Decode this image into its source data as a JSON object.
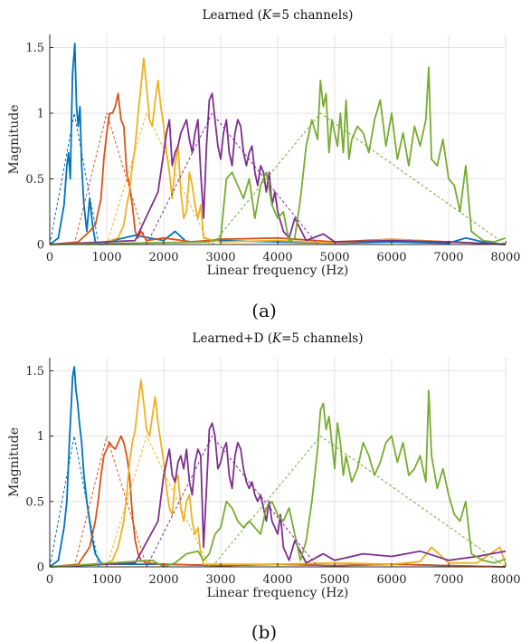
{
  "figure": {
    "captions": [
      "(a)",
      "(b)"
    ]
  },
  "colors": [
    "#0072BD",
    "#D95319",
    "#EDB120",
    "#7E2F8E",
    "#77AC30"
  ],
  "chart_data": [
    {
      "type": "line",
      "title": "Learned (K=5 channels)",
      "title_parts": [
        "Learned (",
        "K",
        "=5 channels)"
      ],
      "xlabel": "Linear frequency (Hz)",
      "ylabel": "Magnitude",
      "xlim": [
        0,
        8000
      ],
      "ylim": [
        0,
        1.6
      ],
      "xticks": [
        0,
        1000,
        2000,
        3000,
        4000,
        5000,
        6000,
        7000,
        8000
      ],
      "yticks": [
        0,
        0.5,
        1,
        1.5
      ],
      "ytick_labels": [
        "0",
        "0.5",
        "1",
        "1.5"
      ],
      "grid": true,
      "series": [
        {
          "style": "solid",
          "x": [
            0,
            150,
            250,
            300,
            330,
            360,
            400,
            440,
            470,
            500,
            530,
            560,
            600,
            650,
            700,
            750,
            800,
            900,
            1100,
            1500,
            2000,
            2200,
            2400,
            3000,
            4000,
            5000,
            6000,
            7000,
            7300,
            7600,
            8000
          ],
          "y": [
            0,
            0.05,
            0.3,
            0.6,
            0.7,
            0.5,
            1.3,
            1.53,
            1.05,
            0.9,
            1.05,
            0.6,
            0.3,
            0.1,
            0.35,
            0.15,
            0.02,
            0.0,
            0.03,
            0.07,
            0.03,
            0.1,
            0.02,
            0.03,
            0.02,
            0.01,
            0.02,
            0.01,
            0.05,
            0.02,
            0.0
          ]
        },
        {
          "style": "solid",
          "x": [
            0,
            500,
            700,
            800,
            900,
            950,
            1000,
            1050,
            1100,
            1150,
            1200,
            1250,
            1300,
            1350,
            1400,
            1450,
            1500,
            1550,
            1600,
            1700,
            2000,
            2500,
            3000,
            4000,
            5000,
            6000,
            7000,
            8000
          ],
          "y": [
            0,
            0.02,
            0.1,
            0.15,
            0.35,
            0.65,
            0.85,
            1.0,
            1.0,
            1.05,
            1.15,
            0.95,
            0.9,
            0.55,
            0.45,
            0.3,
            0.1,
            0.05,
            0.1,
            0.03,
            0.05,
            0.02,
            0.04,
            0.05,
            0.02,
            0.04,
            0.02,
            0.0
          ]
        },
        {
          "style": "solid",
          "x": [
            0,
            1000,
            1200,
            1300,
            1350,
            1400,
            1450,
            1500,
            1550,
            1600,
            1650,
            1700,
            1750,
            1800,
            1850,
            1900,
            1950,
            2000,
            2050,
            2100,
            2150,
            2200,
            2250,
            2300,
            2350,
            2400,
            2450,
            2500,
            2550,
            2600,
            2650,
            2700,
            3000,
            4000,
            5000,
            6000,
            7000,
            8000
          ],
          "y": [
            0,
            0.02,
            0.05,
            0.15,
            0.3,
            0.4,
            0.6,
            0.75,
            1.0,
            1.2,
            1.42,
            1.2,
            0.95,
            0.9,
            1.1,
            1.25,
            1.05,
            0.9,
            0.7,
            0.55,
            0.35,
            0.6,
            0.75,
            0.4,
            0.2,
            0.25,
            0.55,
            0.45,
            0.3,
            0.2,
            0.3,
            0.05,
            0.02,
            0.03,
            0.01,
            0.04,
            0.02,
            0.0
          ]
        },
        {
          "style": "solid",
          "x": [
            0,
            1500,
            1900,
            2000,
            2050,
            2100,
            2150,
            2200,
            2250,
            2300,
            2350,
            2400,
            2450,
            2500,
            2550,
            2600,
            2650,
            2700,
            2750,
            2800,
            2850,
            2900,
            2950,
            3000,
            3050,
            3100,
            3150,
            3200,
            3250,
            3300,
            3350,
            3400,
            3450,
            3500,
            3550,
            3600,
            3650,
            3700,
            3750,
            3800,
            3850,
            3900,
            3950,
            4000,
            4100,
            4200,
            4300,
            4500,
            4800,
            5000,
            6000,
            7000,
            8000
          ],
          "y": [
            0,
            0.03,
            0.4,
            0.7,
            0.85,
            0.95,
            0.6,
            0.7,
            0.75,
            0.85,
            0.9,
            0.95,
            0.8,
            0.7,
            0.85,
            0.95,
            0.55,
            0.2,
            0.75,
            1.1,
            1.15,
            0.95,
            0.75,
            0.65,
            0.85,
            0.95,
            0.7,
            0.6,
            0.85,
            0.95,
            0.9,
            0.7,
            0.6,
            0.7,
            0.75,
            0.55,
            0.45,
            0.6,
            0.55,
            0.4,
            0.55,
            0.3,
            0.4,
            0.25,
            0.1,
            0.05,
            0.2,
            0.03,
            0.08,
            0.02,
            0.03,
            0.02,
            0.0
          ]
        },
        {
          "style": "solid",
          "x": [
            0,
            2800,
            3000,
            3100,
            3200,
            3300,
            3400,
            3500,
            3600,
            3700,
            3800,
            3900,
            4000,
            4100,
            4200,
            4300,
            4400,
            4500,
            4600,
            4700,
            4750,
            4800,
            4850,
            4900,
            4950,
            5000,
            5050,
            5100,
            5150,
            5200,
            5250,
            5300,
            5400,
            5500,
            5600,
            5700,
            5800,
            5900,
            6000,
            6100,
            6200,
            6300,
            6400,
            6500,
            6600,
            6650,
            6700,
            6800,
            6900,
            7000,
            7100,
            7200,
            7300,
            7400,
            7600,
            7800,
            8000
          ],
          "y": [
            0,
            0.02,
            0.05,
            0.5,
            0.55,
            0.45,
            0.35,
            0.5,
            0.2,
            0.45,
            0.55,
            0.3,
            0.2,
            0.25,
            0.02,
            0.05,
            0.35,
            0.75,
            0.95,
            0.8,
            1.25,
            1.05,
            1.15,
            0.7,
            0.95,
            0.85,
            0.75,
            1.0,
            0.7,
            1.1,
            0.65,
            0.8,
            0.9,
            0.85,
            0.7,
            0.95,
            1.1,
            0.75,
            1.0,
            0.65,
            0.85,
            0.6,
            0.9,
            0.75,
            0.95,
            1.35,
            0.65,
            0.6,
            0.8,
            0.5,
            0.45,
            0.25,
            0.6,
            0.1,
            0.03,
            0.02,
            0.05
          ]
        },
        {
          "style": "dashed",
          "x": [
            0,
            430,
            860
          ],
          "y": [
            0,
            1,
            0
          ]
        },
        {
          "style": "dashed",
          "x": [
            430,
            1000,
            1700
          ],
          "y": [
            0,
            1,
            0
          ]
        },
        {
          "style": "dashed",
          "x": [
            1000,
            1700,
            2800
          ],
          "y": [
            0,
            1,
            0
          ]
        },
        {
          "style": "dashed",
          "x": [
            1700,
            2850,
            4700
          ],
          "y": [
            0,
            1,
            0
          ]
        },
        {
          "style": "dashed",
          "x": [
            2850,
            4750,
            8000
          ],
          "y": [
            0,
            1,
            0
          ]
        }
      ]
    },
    {
      "type": "line",
      "title": "Learned+D (K=5 channels)",
      "title_parts": [
        "Learned+D (",
        "K",
        "=5 channels)"
      ],
      "xlabel": "Linear frequency (Hz)",
      "ylabel": "Magnitude",
      "xlim": [
        0,
        8000
      ],
      "ylim": [
        0,
        1.6
      ],
      "xticks": [
        0,
        1000,
        2000,
        3000,
        4000,
        5000,
        6000,
        7000,
        8000
      ],
      "yticks": [
        0,
        0.5,
        1,
        1.5
      ],
      "ytick_labels": [
        "0",
        "0.5",
        "1",
        "1.5"
      ],
      "grid": true,
      "series": [
        {
          "style": "solid",
          "x": [
            0,
            150,
            250,
            300,
            350,
            380,
            400,
            430,
            460,
            490,
            520,
            560,
            600,
            650,
            700,
            750,
            800,
            900,
            1000,
            1500,
            2000,
            3000,
            4000,
            5000,
            6000,
            7000,
            8000
          ],
          "y": [
            0,
            0.05,
            0.3,
            0.5,
            1.0,
            1.25,
            1.45,
            1.53,
            1.35,
            1.25,
            1.1,
            0.95,
            0.7,
            0.5,
            0.35,
            0.2,
            0.1,
            0.03,
            0.02,
            0.02,
            0.02,
            0.01,
            0.02,
            0.01,
            0.02,
            0.01,
            0.0
          ]
        },
        {
          "style": "solid",
          "x": [
            0,
            500,
            700,
            800,
            850,
            900,
            950,
            1000,
            1050,
            1100,
            1150,
            1200,
            1250,
            1300,
            1350,
            1400,
            1450,
            1500,
            1550,
            1600,
            1700,
            2000,
            3000,
            4000,
            5000,
            6000,
            7000,
            8000
          ],
          "y": [
            0,
            0.02,
            0.15,
            0.35,
            0.5,
            0.7,
            0.85,
            0.9,
            0.95,
            0.92,
            0.9,
            0.95,
            1.0,
            0.95,
            0.85,
            0.7,
            0.4,
            0.2,
            0.1,
            0.05,
            0.03,
            0.02,
            0.01,
            0.02,
            0.01,
            0.02,
            0.01,
            0.0
          ]
        },
        {
          "style": "solid",
          "x": [
            0,
            1000,
            1100,
            1200,
            1300,
            1350,
            1400,
            1450,
            1500,
            1550,
            1600,
            1650,
            1700,
            1750,
            1800,
            1850,
            1900,
            1950,
            2000,
            2050,
            2100,
            2150,
            2200,
            2250,
            2300,
            2350,
            2400,
            2450,
            2500,
            2550,
            2600,
            2650,
            2700,
            3000,
            4000,
            5000,
            6000,
            6500,
            6700,
            7000,
            7500,
            7900,
            8000
          ],
          "y": [
            0,
            0.02,
            0.05,
            0.15,
            0.35,
            0.55,
            0.8,
            0.95,
            1.05,
            1.25,
            1.43,
            1.25,
            1.05,
            1.0,
            1.15,
            1.3,
            1.1,
            0.95,
            0.8,
            0.6,
            0.45,
            0.4,
            0.65,
            0.7,
            0.45,
            0.35,
            0.5,
            0.55,
            0.35,
            0.25,
            0.3,
            0.1,
            0.02,
            0.02,
            0.02,
            0.03,
            0.02,
            0.04,
            0.15,
            0.03,
            0.03,
            0.15,
            0.02
          ]
        },
        {
          "style": "solid",
          "x": [
            0,
            1500,
            1900,
            2000,
            2050,
            2100,
            2150,
            2200,
            2250,
            2300,
            2350,
            2400,
            2450,
            2500,
            2550,
            2600,
            2650,
            2700,
            2750,
            2800,
            2850,
            2900,
            2950,
            3000,
            3050,
            3100,
            3150,
            3200,
            3250,
            3300,
            3350,
            3400,
            3450,
            3500,
            3550,
            3600,
            3650,
            3700,
            3750,
            3800,
            3850,
            3900,
            3950,
            4000,
            4050,
            4100,
            4200,
            4300,
            4500,
            4800,
            5000,
            5500,
            6000,
            6500,
            7000,
            7500,
            8000
          ],
          "y": [
            0,
            0.03,
            0.35,
            0.7,
            0.8,
            0.9,
            0.7,
            0.65,
            0.8,
            0.85,
            0.75,
            0.9,
            0.65,
            0.55,
            0.8,
            0.9,
            0.85,
            0.15,
            0.6,
            1.05,
            1.1,
            1.0,
            0.75,
            0.8,
            0.9,
            0.95,
            0.7,
            0.6,
            0.85,
            0.95,
            0.9,
            0.75,
            0.65,
            0.6,
            0.65,
            0.55,
            0.5,
            0.55,
            0.45,
            0.35,
            0.5,
            0.35,
            0.3,
            0.25,
            0.4,
            0.15,
            0.05,
            0.2,
            0.03,
            0.1,
            0.05,
            0.1,
            0.08,
            0.12,
            0.05,
            0.08,
            0.12
          ]
        },
        {
          "style": "solid",
          "x": [
            0,
            1800,
            2000,
            2200,
            2400,
            2600,
            2700,
            2800,
            2900,
            3000,
            3100,
            3200,
            3300,
            3400,
            3500,
            3600,
            3700,
            3800,
            3900,
            4000,
            4100,
            4200,
            4300,
            4400,
            4500,
            4600,
            4700,
            4750,
            4800,
            4850,
            4900,
            4950,
            5000,
            5050,
            5100,
            5150,
            5200,
            5250,
            5300,
            5400,
            5500,
            5600,
            5700,
            5800,
            5900,
            6000,
            6100,
            6200,
            6300,
            6400,
            6500,
            6600,
            6650,
            6700,
            6800,
            6900,
            7000,
            7100,
            7200,
            7300,
            7400,
            7600,
            7800,
            8000
          ],
          "y": [
            0,
            0.05,
            0.0,
            0.03,
            0.1,
            0.12,
            0.05,
            0.1,
            0.25,
            0.3,
            0.5,
            0.45,
            0.35,
            0.3,
            0.35,
            0.3,
            0.25,
            0.45,
            0.5,
            0.4,
            0.35,
            0.45,
            0.25,
            0.05,
            0.2,
            0.5,
            0.9,
            1.2,
            1.25,
            1.05,
            1.15,
            0.95,
            0.75,
            1.1,
            0.95,
            0.7,
            0.85,
            0.75,
            0.65,
            0.75,
            0.95,
            0.85,
            0.7,
            0.8,
            0.95,
            1.0,
            0.8,
            0.95,
            0.7,
            0.75,
            0.85,
            0.65,
            1.35,
            0.85,
            0.6,
            0.75,
            0.55,
            0.4,
            0.35,
            0.5,
            0.1,
            0.05,
            0.03,
            0.06
          ]
        },
        {
          "style": "dashed",
          "x": [
            0,
            430,
            860
          ],
          "y": [
            0,
            1,
            0
          ]
        },
        {
          "style": "dashed",
          "x": [
            430,
            1000,
            1700
          ],
          "y": [
            0,
            1,
            0
          ]
        },
        {
          "style": "dashed",
          "x": [
            1000,
            1700,
            2800
          ],
          "y": [
            0,
            1,
            0
          ]
        },
        {
          "style": "dashed",
          "x": [
            1700,
            2850,
            4700
          ],
          "y": [
            0,
            1,
            0
          ]
        },
        {
          "style": "dashed",
          "x": [
            2850,
            4750,
            8000
          ],
          "y": [
            0,
            1,
            0
          ]
        }
      ]
    }
  ]
}
